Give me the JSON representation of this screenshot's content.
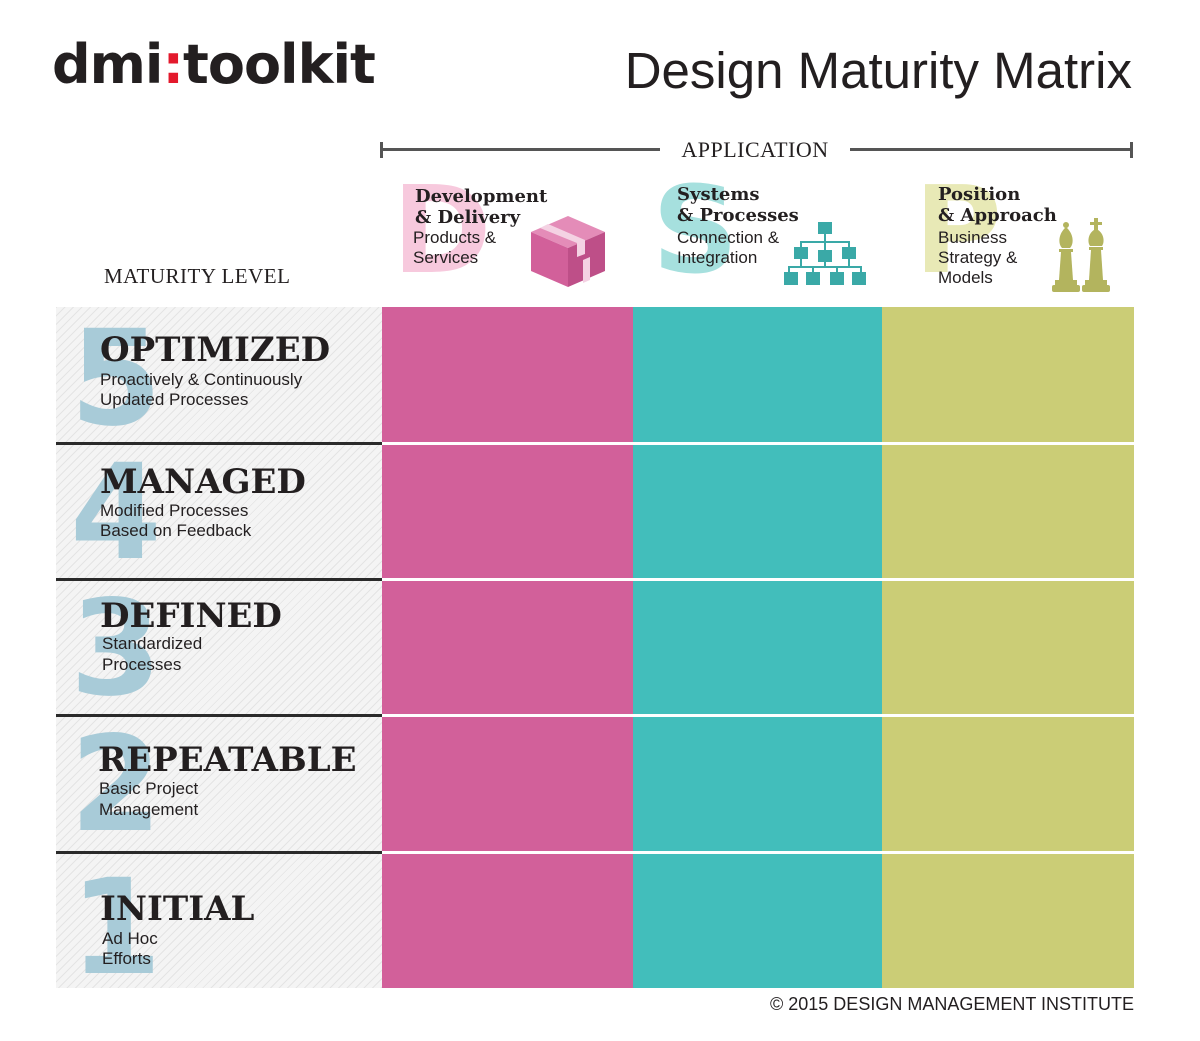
{
  "logo": {
    "pre": "dmi",
    "colon": ":",
    "post": "toolkit"
  },
  "title": "Design Maturity Matrix",
  "application_label": "APPLICATION",
  "maturity_label": "MATURITY LEVEL",
  "colors": {
    "magenta": "#d2609a",
    "teal": "#42bebb",
    "olive": "#cbcd76",
    "number": "#a8cbd8",
    "accent": "#e3192c"
  },
  "columns": [
    {
      "letter": "D",
      "title1": "Development",
      "title2": "& Delivery",
      "sub1": "Products &",
      "sub2": "Services",
      "sub3": "",
      "icon": "box-icon",
      "color": "#d2609a",
      "letter_color": "#f7c9dd"
    },
    {
      "letter": "S",
      "title1": "Systems",
      "title2": "& Processes",
      "sub1": "Connection &",
      "sub2": "Integration",
      "sub3": "",
      "icon": "org-chart-icon",
      "color": "#42bebb",
      "letter_color": "#a6e0de"
    },
    {
      "letter": "P",
      "title1": "Position",
      "title2": "& Approach",
      "sub1": "Business",
      "sub2": "Strategy &",
      "sub3": "Models",
      "icon": "chess-pieces-icon",
      "color": "#cbcd76",
      "letter_color": "#e8e9b6"
    }
  ],
  "levels": [
    {
      "number": "5",
      "name": "OPTIMIZED",
      "desc1": "Proactively & Continuously",
      "desc2": "Updated Processes"
    },
    {
      "number": "4",
      "name": "MANAGED",
      "desc1": "Modified Processes",
      "desc2": "Based on Feedback"
    },
    {
      "number": "3",
      "name": "DEFINED",
      "desc1": "Standardized",
      "desc2": "Processes"
    },
    {
      "number": "2",
      "name": "REPEATABLE",
      "desc1": "Basic Project",
      "desc2": "Management"
    },
    {
      "number": "1",
      "name": "INITIAL",
      "desc1": "Ad Hoc",
      "desc2": "Efforts"
    }
  ],
  "copyright": "© 2015 DESIGN MANAGEMENT INSTITUTE"
}
